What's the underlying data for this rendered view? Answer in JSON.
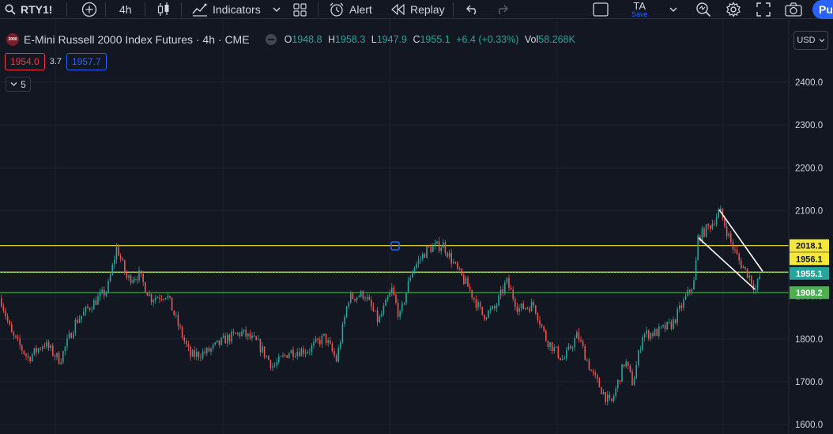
{
  "toolbar": {
    "symbol": "RTY1!",
    "interval": "4h",
    "indicators_label": "Indicators",
    "alert_label": "Alert",
    "replay_label": "Replay",
    "ta_label": "TA",
    "ta_sub": "Save",
    "publish_label": "Pu"
  },
  "legend": {
    "badge_text": "2000",
    "title": "E-Mini Russell 2000 Index Futures · 4h · CME",
    "open_key": "O",
    "open": "1948.8",
    "high_key": "H",
    "high": "1958.3",
    "low_key": "L",
    "low": "1947.9",
    "close_key": "C",
    "close": "1955.1",
    "change": "+6.4 (+0.33%)",
    "vol_key": "Vol",
    "vol": "58.268K"
  },
  "quote": {
    "bid": "1954.0",
    "spread": "3.7",
    "ask": "1957.7"
  },
  "collapse": {
    "count": "5"
  },
  "currency": "USD",
  "colors": {
    "background": "#131722",
    "up": "#26a69a",
    "down": "#ef5350",
    "yellow_line": "#f5e83b",
    "green_line": "#4caf50",
    "grid": "#1e222d",
    "wedge": "#ffffff"
  },
  "chart_data": {
    "type": "candlestick",
    "y_ticks": [
      "2400.0",
      "2300.0",
      "2200.0",
      "2100.0",
      "1900.0",
      "1800.0",
      "1700.0",
      "1600.0"
    ],
    "y_range": [
      1580,
      2480
    ],
    "price_labels": [
      {
        "value": "2018.1",
        "price": 2018.1,
        "bg": "#f5e83b",
        "fg": "#131722"
      },
      {
        "value": "1956.1",
        "price": 1956.1,
        "bg": "#f5e83b",
        "fg": "#131722"
      },
      {
        "value": "1955.1",
        "price": 1955.1,
        "bg": "#26a69a",
        "fg": "#ffffff"
      },
      {
        "value": "1908.2",
        "price": 1908.2,
        "bg": "#4caf50",
        "fg": "#ffffff"
      }
    ],
    "horizontal_lines": [
      {
        "price": 2018.1,
        "color": "#f5e83b"
      },
      {
        "price": 1956.1,
        "color": "#f5e83b"
      },
      {
        "price": 1908.2,
        "color": "#4caf50"
      }
    ],
    "anchors": [
      [
        0,
        1895
      ],
      [
        14,
        1810
      ],
      [
        35,
        1755
      ],
      [
        55,
        1790
      ],
      [
        75,
        1750
      ],
      [
        95,
        1840
      ],
      [
        115,
        1880
      ],
      [
        135,
        1915
      ],
      [
        147,
        2015
      ],
      [
        160,
        1940
      ],
      [
        175,
        1950
      ],
      [
        190,
        1895
      ],
      [
        210,
        1905
      ],
      [
        225,
        1830
      ],
      [
        240,
        1760
      ],
      [
        262,
        1770
      ],
      [
        285,
        1800
      ],
      [
        305,
        1815
      ],
      [
        325,
        1790
      ],
      [
        345,
        1735
      ],
      [
        365,
        1770
      ],
      [
        390,
        1775
      ],
      [
        410,
        1805
      ],
      [
        425,
        1750
      ],
      [
        440,
        1895
      ],
      [
        460,
        1905
      ],
      [
        478,
        1840
      ],
      [
        495,
        1915
      ],
      [
        505,
        1850
      ],
      [
        520,
        1960
      ],
      [
        540,
        2010
      ],
      [
        560,
        2020
      ],
      [
        578,
        1960
      ],
      [
        592,
        1920
      ],
      [
        610,
        1855
      ],
      [
        625,
        1870
      ],
      [
        640,
        1935
      ],
      [
        655,
        1870
      ],
      [
        675,
        1880
      ],
      [
        690,
        1800
      ],
      [
        712,
        1750
      ],
      [
        730,
        1810
      ],
      [
        748,
        1720
      ],
      [
        772,
        1645
      ],
      [
        790,
        1750
      ],
      [
        800,
        1695
      ],
      [
        812,
        1810
      ],
      [
        830,
        1815
      ],
      [
        850,
        1835
      ],
      [
        868,
        1900
      ],
      [
        878,
        1935
      ],
      [
        882,
        2035
      ],
      [
        900,
        2070
      ],
      [
        910,
        2100
      ],
      [
        925,
        2020
      ],
      [
        935,
        1980
      ],
      [
        948,
        1945
      ],
      [
        955,
        1915
      ],
      [
        962,
        1955
      ]
    ],
    "wedge": {
      "upper": [
        [
          910,
          2102
        ],
        [
          965,
          1958
        ]
      ],
      "lower": [
        [
          884,
          2036
        ],
        [
          955,
          1916
        ]
      ]
    }
  }
}
